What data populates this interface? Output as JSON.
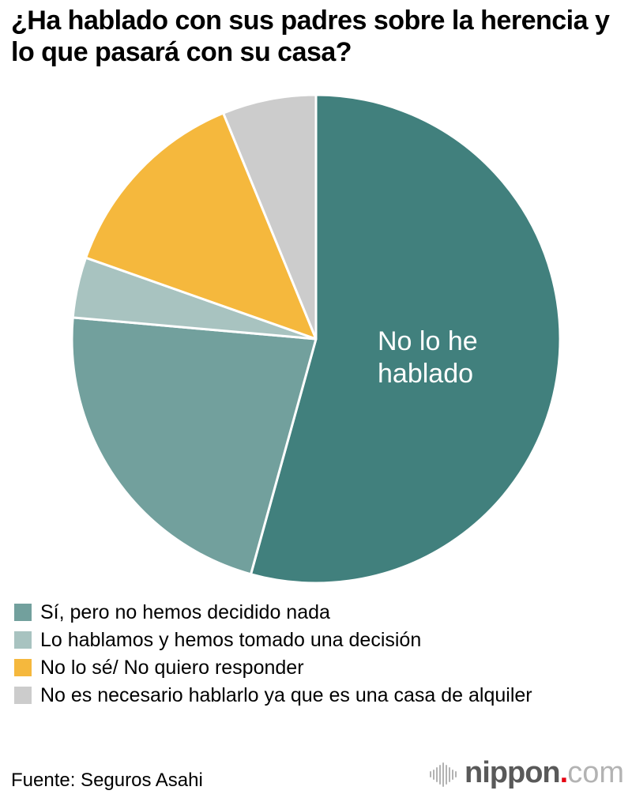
{
  "title": "¿Ha hablado con sus padres sobre la herencia y lo que pasará con su casa?",
  "chart_data": {
    "type": "pie",
    "title": "¿Ha hablado con sus padres sobre la herencia y lo que pasará con su casa?",
    "start_angle_deg": 0,
    "direction": "clockwise",
    "legend_position": "bottom",
    "inside_label_lines": [
      "No lo he",
      "hablado"
    ],
    "segments": [
      {
        "label": "No lo he hablado",
        "value_pct": 54.3,
        "color": "#41807D",
        "label_position": "inside"
      },
      {
        "label": "Sí, pero no hemos decidido nada",
        "value_pct": 22.1,
        "color": "#72A09D",
        "label_position": "legend"
      },
      {
        "label": "Lo hablamos y hemos tomado una decisión",
        "value_pct": 4.0,
        "color": "#A8C3C0",
        "label_position": "legend"
      },
      {
        "label": "No lo sé/ No quiero responder",
        "value_pct": 13.4,
        "color": "#F5B83D",
        "label_position": "legend"
      },
      {
        "label": "No es necesario hablarlo ya que es una casa de alquiler",
        "value_pct": 6.2,
        "color": "#CCCCCC",
        "label_position": "legend"
      }
    ],
    "separator_color": "#FFFFFF",
    "inside_label_color": "#FFFFFF"
  },
  "footer": {
    "source": "Fuente: Seguros Asahi",
    "logo": {
      "name": "nippon",
      "dot": ".",
      "tld": "com",
      "soundwave_icon": "vertical-bars",
      "name_color": "#595959",
      "dot_color": "#E60012",
      "tld_color": "#B3B3B3",
      "bars_color": "#B3B3B3"
    }
  }
}
